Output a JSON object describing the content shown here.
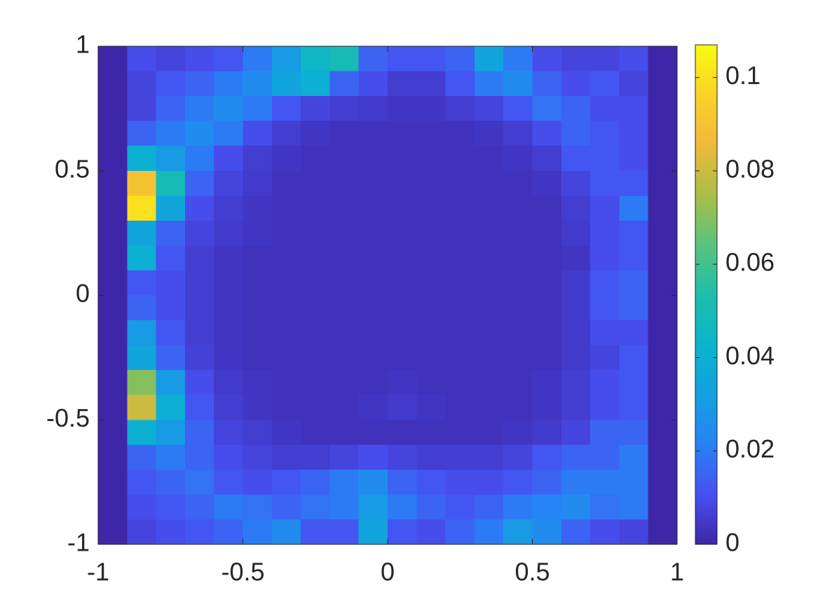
{
  "chart_data": {
    "type": "heatmap",
    "colormap": "parula",
    "xlim": [
      -1,
      1
    ],
    "ylim": [
      -1,
      1
    ],
    "xticks": [
      -1,
      -0.5,
      0,
      0.5,
      1
    ],
    "yticks": [
      -1,
      -0.5,
      0,
      0.5,
      1
    ],
    "clim": [
      0,
      0.107
    ],
    "cticks": [
      0,
      0.02,
      0.04,
      0.06,
      0.08,
      0.1
    ],
    "values": [
      [
        0,
        0.01,
        0.008,
        0.01,
        0.012,
        0.02,
        0.03,
        0.045,
        0.05,
        0.015,
        0.012,
        0.012,
        0.015,
        0.035,
        0.02,
        0.01,
        0.008,
        0.008,
        0.01,
        0
      ],
      [
        0,
        0.008,
        0.012,
        0.015,
        0.02,
        0.025,
        0.035,
        0.04,
        0.015,
        0.01,
        0.006,
        0.006,
        0.012,
        0.02,
        0.025,
        0.015,
        0.01,
        0.012,
        0.008,
        0
      ],
      [
        0,
        0.008,
        0.015,
        0.02,
        0.025,
        0.02,
        0.012,
        0.008,
        0.006,
        0.005,
        0.004,
        0.004,
        0.006,
        0.008,
        0.012,
        0.018,
        0.015,
        0.01,
        0.01,
        0
      ],
      [
        0,
        0.015,
        0.02,
        0.025,
        0.02,
        0.01,
        0.006,
        0.004,
        0.003,
        0.003,
        0.003,
        0.003,
        0.003,
        0.004,
        0.006,
        0.01,
        0.015,
        0.012,
        0.01,
        0
      ],
      [
        0,
        0.04,
        0.03,
        0.02,
        0.01,
        0.006,
        0.004,
        0.003,
        0.003,
        0.003,
        0.003,
        0.003,
        0.003,
        0.003,
        0.004,
        0.006,
        0.012,
        0.012,
        0.01,
        0
      ],
      [
        0,
        0.09,
        0.05,
        0.015,
        0.008,
        0.005,
        0.003,
        0.003,
        0.003,
        0.003,
        0.003,
        0.003,
        0.003,
        0.003,
        0.003,
        0.004,
        0.008,
        0.012,
        0.012,
        0
      ],
      [
        0,
        0.1,
        0.035,
        0.01,
        0.006,
        0.004,
        0.003,
        0.003,
        0.003,
        0.003,
        0.003,
        0.003,
        0.003,
        0.003,
        0.003,
        0.003,
        0.006,
        0.01,
        0.02,
        0
      ],
      [
        0,
        0.035,
        0.015,
        0.008,
        0.005,
        0.004,
        0.003,
        0.003,
        0.003,
        0.003,
        0.003,
        0.003,
        0.003,
        0.003,
        0.003,
        0.003,
        0.005,
        0.01,
        0.012,
        0
      ],
      [
        0,
        0.04,
        0.012,
        0.006,
        0.004,
        0.003,
        0.003,
        0.003,
        0.003,
        0.003,
        0.003,
        0.003,
        0.003,
        0.003,
        0.003,
        0.003,
        0.004,
        0.01,
        0.012,
        0
      ],
      [
        0,
        0.012,
        0.01,
        0.006,
        0.004,
        0.003,
        0.003,
        0.003,
        0.003,
        0.003,
        0.003,
        0.003,
        0.003,
        0.003,
        0.003,
        0.003,
        0.005,
        0.012,
        0.015,
        0
      ],
      [
        0,
        0.015,
        0.01,
        0.006,
        0.004,
        0.003,
        0.003,
        0.003,
        0.003,
        0.003,
        0.003,
        0.003,
        0.003,
        0.003,
        0.003,
        0.003,
        0.005,
        0.012,
        0.015,
        0
      ],
      [
        0,
        0.03,
        0.012,
        0.006,
        0.004,
        0.003,
        0.003,
        0.003,
        0.003,
        0.003,
        0.003,
        0.003,
        0.003,
        0.003,
        0.003,
        0.003,
        0.005,
        0.01,
        0.01,
        0
      ],
      [
        0,
        0.035,
        0.015,
        0.007,
        0.004,
        0.003,
        0.003,
        0.003,
        0.003,
        0.003,
        0.003,
        0.003,
        0.003,
        0.003,
        0.003,
        0.003,
        0.005,
        0.008,
        0.012,
        0
      ],
      [
        0,
        0.07,
        0.03,
        0.01,
        0.005,
        0.004,
        0.003,
        0.003,
        0.003,
        0.003,
        0.004,
        0.003,
        0.003,
        0.003,
        0.003,
        0.004,
        0.006,
        0.01,
        0.012,
        0
      ],
      [
        0,
        0.08,
        0.04,
        0.012,
        0.006,
        0.004,
        0.003,
        0.003,
        0.003,
        0.004,
        0.005,
        0.004,
        0.003,
        0.003,
        0.003,
        0.004,
        0.006,
        0.01,
        0.012,
        0
      ],
      [
        0,
        0.04,
        0.03,
        0.015,
        0.008,
        0.006,
        0.004,
        0.003,
        0.003,
        0.003,
        0.003,
        0.003,
        0.003,
        0.003,
        0.004,
        0.005,
        0.008,
        0.015,
        0.015,
        0
      ],
      [
        0,
        0.015,
        0.02,
        0.015,
        0.01,
        0.008,
        0.006,
        0.006,
        0.008,
        0.01,
        0.008,
        0.006,
        0.006,
        0.006,
        0.008,
        0.012,
        0.015,
        0.015,
        0.02,
        0
      ],
      [
        0,
        0.012,
        0.015,
        0.018,
        0.012,
        0.01,
        0.012,
        0.015,
        0.02,
        0.025,
        0.015,
        0.012,
        0.01,
        0.01,
        0.012,
        0.015,
        0.02,
        0.02,
        0.02,
        0
      ],
      [
        0,
        0.01,
        0.012,
        0.015,
        0.02,
        0.018,
        0.015,
        0.018,
        0.02,
        0.03,
        0.02,
        0.015,
        0.012,
        0.015,
        0.02,
        0.022,
        0.025,
        0.018,
        0.02,
        0
      ],
      [
        0,
        0.008,
        0.01,
        0.012,
        0.015,
        0.02,
        0.025,
        0.012,
        0.012,
        0.035,
        0.012,
        0.01,
        0.015,
        0.02,
        0.03,
        0.025,
        0.015,
        0.01,
        0.008,
        0
      ]
    ]
  }
}
